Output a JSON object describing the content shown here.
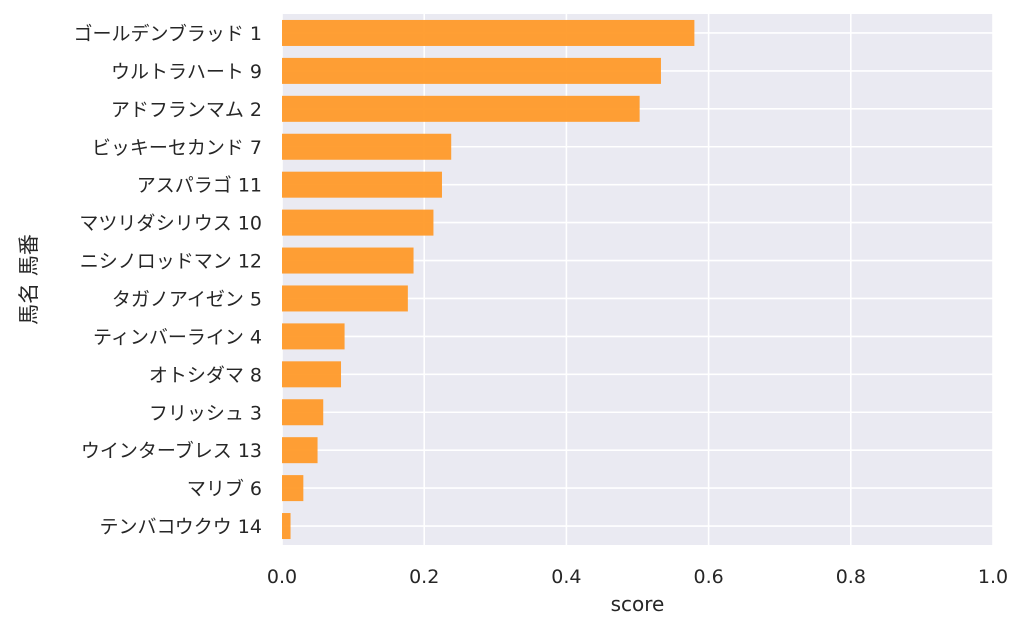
{
  "chart_data": {
    "type": "bar",
    "orientation": "horizontal",
    "categories": [
      "ゴールデンブラッド 1",
      "ウルトラハート 9",
      "アドフランマム 2",
      "ビッキーセカンド 7",
      "アスパラゴ 11",
      "マツリダシリウス 10",
      "ニシノロッドマン 12",
      "タガノアイゼン 5",
      "ティンバーライン 4",
      "オトシダマ 8",
      "フリッシュ 3",
      "ウインターブレス 13",
      "マリブ 6",
      "テンバコウクウ 14"
    ],
    "values": [
      0.58,
      0.533,
      0.503,
      0.238,
      0.225,
      0.213,
      0.185,
      0.177,
      0.088,
      0.083,
      0.058,
      0.05,
      0.03,
      0.012
    ],
    "xlabel": "score",
    "ylabel": "馬名 馬番",
    "xlim": [
      0,
      1.0
    ],
    "xticks": [
      "0.0",
      "0.2",
      "0.4",
      "0.6",
      "0.8",
      "1.0"
    ],
    "grid": true,
    "colors": {
      "bar": "#ff9a29",
      "plot_background": "#eaeaf2",
      "grid": "#ffffff"
    }
  }
}
